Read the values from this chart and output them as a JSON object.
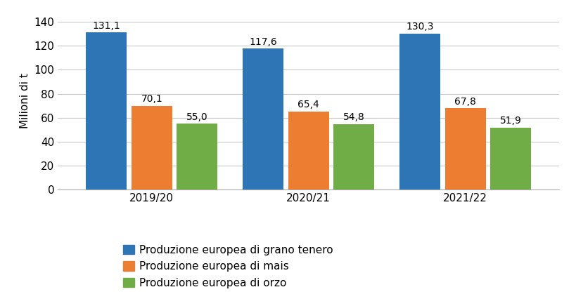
{
  "categories": [
    "2019/20",
    "2020/21",
    "2021/22"
  ],
  "series": {
    "Produzione europea di grano tenero": [
      131.1,
      117.6,
      130.3
    ],
    "Produzione europea di mais": [
      70.1,
      65.4,
      67.8
    ],
    "Produzione europea di orzo": [
      55.0,
      54.8,
      51.9
    ]
  },
  "colors": [
    "#2e75b6",
    "#ed7d31",
    "#70ad47"
  ],
  "ylabel": "Milioni di t",
  "ylim": [
    0,
    148
  ],
  "yticks": [
    0,
    20,
    40,
    60,
    80,
    100,
    120,
    140
  ],
  "bar_width": 0.26,
  "tick_fontsize": 11,
  "ylabel_fontsize": 11,
  "legend_fontsize": 11,
  "annotation_fontsize": 10,
  "background_color": "#ffffff",
  "grid_color": "#c8c8c8",
  "legend_labels": [
    "Produzione europea di grano tenero",
    "Produzione europea di mais",
    "Produzione europea di orzo"
  ]
}
